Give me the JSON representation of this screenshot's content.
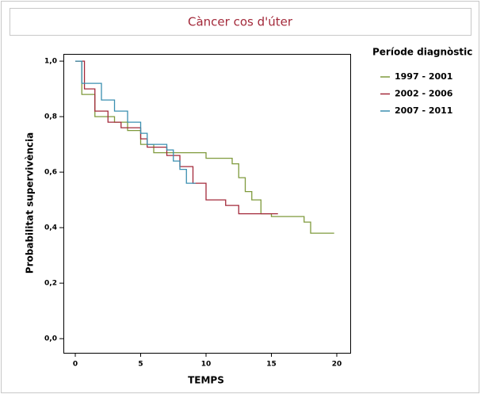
{
  "chart_data": {
    "type": "line",
    "drawstyle": "steps-post",
    "title": "Càncer cos d'úter",
    "x_label": "TEMPS",
    "y_label": "Probabilitat supervivència",
    "legend_title": "Període diagnòstic",
    "legend": "right",
    "xlim": [
      -0.91,
      21.03
    ],
    "ylim": [
      -0.051,
      1.026
    ],
    "xticks": [
      0,
      5,
      10,
      15,
      20
    ],
    "yticks": [
      {
        "value": 0,
        "label": "0,0"
      },
      {
        "value": 0.2,
        "label": "0,2"
      },
      {
        "value": 0.4,
        "label": "0,4"
      },
      {
        "value": 0.6,
        "label": "0,6"
      },
      {
        "value": 0.8,
        "label": "0,8"
      },
      {
        "value": 1,
        "label": "1,0"
      }
    ],
    "series": [
      {
        "name": "1997 - 2001",
        "color": "#7f9a3c",
        "x": [
          0,
          0.5,
          1.5,
          3,
          4,
          5,
          6,
          9,
          10,
          12,
          12.5,
          13,
          13.5,
          14.2,
          15,
          17.5,
          18,
          19.8
        ],
        "values": [
          1.0,
          0.88,
          0.8,
          0.78,
          0.75,
          0.7,
          0.67,
          0.67,
          0.65,
          0.63,
          0.58,
          0.53,
          0.5,
          0.45,
          0.44,
          0.42,
          0.38,
          0.38
        ]
      },
      {
        "name": "2002 - 2006",
        "color": "#a3293a",
        "x": [
          0,
          0.7,
          1.5,
          2.5,
          3.5,
          5,
          5.5,
          7,
          8,
          9,
          10,
          11.5,
          12.5,
          15.5
        ],
        "values": [
          1.0,
          0.9,
          0.82,
          0.78,
          0.76,
          0.72,
          0.69,
          0.66,
          0.62,
          0.56,
          0.5,
          0.48,
          0.45,
          0.45
        ]
      },
      {
        "name": "2007 - 2011",
        "color": "#3a8fb0",
        "x": [
          0,
          0.5,
          2,
          3,
          4,
          5,
          5.5,
          7,
          7.5,
          8,
          8.5,
          9.2
        ],
        "values": [
          1.0,
          0.92,
          0.86,
          0.82,
          0.78,
          0.74,
          0.7,
          0.68,
          0.64,
          0.61,
          0.56,
          0.56
        ]
      }
    ]
  }
}
